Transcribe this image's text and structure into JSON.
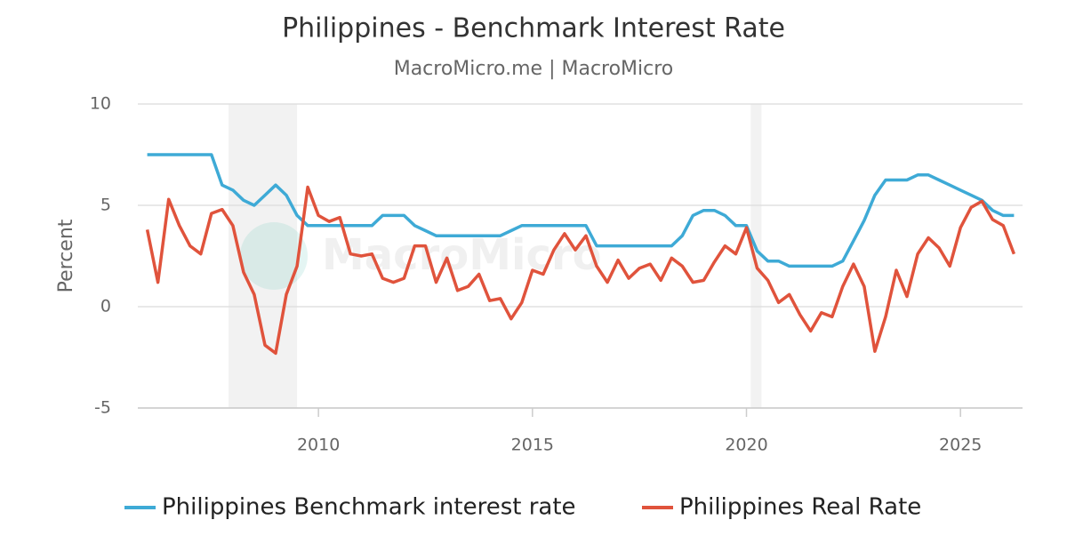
{
  "chart_data": {
    "type": "line",
    "title": "Philippines - Benchmark Interest Rate",
    "subtitle": "MacroMicro.me | MacroMicro",
    "watermark": "MacroMicro",
    "y_label": "Percent",
    "xlim": [
      2005.78,
      2026.45
    ],
    "xticks": [
      2010,
      2015,
      2020,
      2025
    ],
    "ylim": [
      -5,
      10
    ],
    "yticks": [
      -5,
      0,
      5,
      10
    ],
    "grid": true,
    "legend": "bottom",
    "recession_bands": [
      [
        2007.9,
        2009.5
      ],
      [
        2020.1,
        2020.35
      ]
    ],
    "x": [
      2006,
      2006.25,
      2006.5,
      2006.75,
      2007,
      2007.25,
      2007.5,
      2007.75,
      2008,
      2008.25,
      2008.5,
      2008.75,
      2009,
      2009.25,
      2009.5,
      2009.75,
      2010,
      2010.25,
      2010.5,
      2010.75,
      2011,
      2011.25,
      2011.5,
      2011.75,
      2012,
      2012.25,
      2012.5,
      2012.75,
      2013,
      2013.25,
      2013.5,
      2013.75,
      2014,
      2014.25,
      2014.5,
      2014.75,
      2015,
      2015.25,
      2015.5,
      2015.75,
      2016,
      2016.25,
      2016.5,
      2016.75,
      2017,
      2017.25,
      2017.5,
      2017.75,
      2018,
      2018.25,
      2018.5,
      2018.75,
      2019,
      2019.25,
      2019.5,
      2019.75,
      2020,
      2020.25,
      2020.5,
      2020.75,
      2021,
      2021.25,
      2021.5,
      2021.75,
      2022,
      2022.25,
      2022.5,
      2022.75,
      2023,
      2023.25,
      2023.5,
      2023.75,
      2024,
      2024.25,
      2024.5,
      2024.75,
      2025,
      2025.25,
      2025.5,
      2025.75,
      2026,
      2026.25
    ],
    "series": [
      {
        "name": "Philippines Benchmark interest rate",
        "color": "#3eaad6",
        "values": [
          7.5,
          7.5,
          7.5,
          7.5,
          7.5,
          7.5,
          7.5,
          6.0,
          5.75,
          5.25,
          5.0,
          5.5,
          6.0,
          5.5,
          4.5,
          4.0,
          4,
          4,
          4,
          4,
          4,
          4,
          4.5,
          4.5,
          4.5,
          4.0,
          3.75,
          3.5,
          3.5,
          3.5,
          3.5,
          3.5,
          3.5,
          3.5,
          3.75,
          4.0,
          4,
          4,
          4,
          4,
          4,
          4,
          3,
          3,
          3,
          3,
          3,
          3,
          3,
          3,
          3.5,
          4.5,
          4.75,
          4.75,
          4.5,
          4.0,
          4.0,
          2.75,
          2.25,
          2.25,
          2,
          2,
          2,
          2,
          2,
          2.25,
          3.25,
          4.25,
          5.5,
          6.25,
          6.25,
          6.25,
          6.5,
          6.5,
          6.25,
          6.0,
          5.75,
          5.5,
          5.25,
          4.75,
          4.5,
          4.5
        ]
      },
      {
        "name": "Philippines Real Rate",
        "color": "#e0533c",
        "values": [
          3.8,
          1.2,
          5.3,
          4.0,
          3.0,
          2.6,
          4.6,
          4.8,
          4.0,
          1.7,
          0.6,
          -1.9,
          -2.3,
          0.6,
          2.0,
          5.9,
          4.5,
          4.2,
          4.4,
          2.6,
          2.5,
          2.6,
          1.4,
          1.2,
          1.4,
          3.0,
          3.0,
          1.2,
          2.4,
          0.8,
          1.0,
          1.6,
          0.3,
          0.4,
          -0.6,
          0.2,
          1.8,
          1.6,
          2.8,
          3.6,
          2.8,
          3.5,
          2.0,
          1.2,
          2.3,
          1.4,
          1.9,
          2.1,
          1.3,
          2.4,
          2.0,
          1.2,
          1.3,
          2.2,
          3.0,
          2.6,
          3.9,
          1.9,
          1.3,
          0.2,
          0.6,
          -0.4,
          -1.2,
          -0.3,
          -0.5,
          1.0,
          2.1,
          1.0,
          -2.2,
          -0.5,
          1.8,
          0.5,
          2.6,
          3.4,
          2.9,
          2.0,
          3.9,
          4.9,
          5.2,
          4.3,
          4.0,
          2.6
        ]
      }
    ]
  }
}
